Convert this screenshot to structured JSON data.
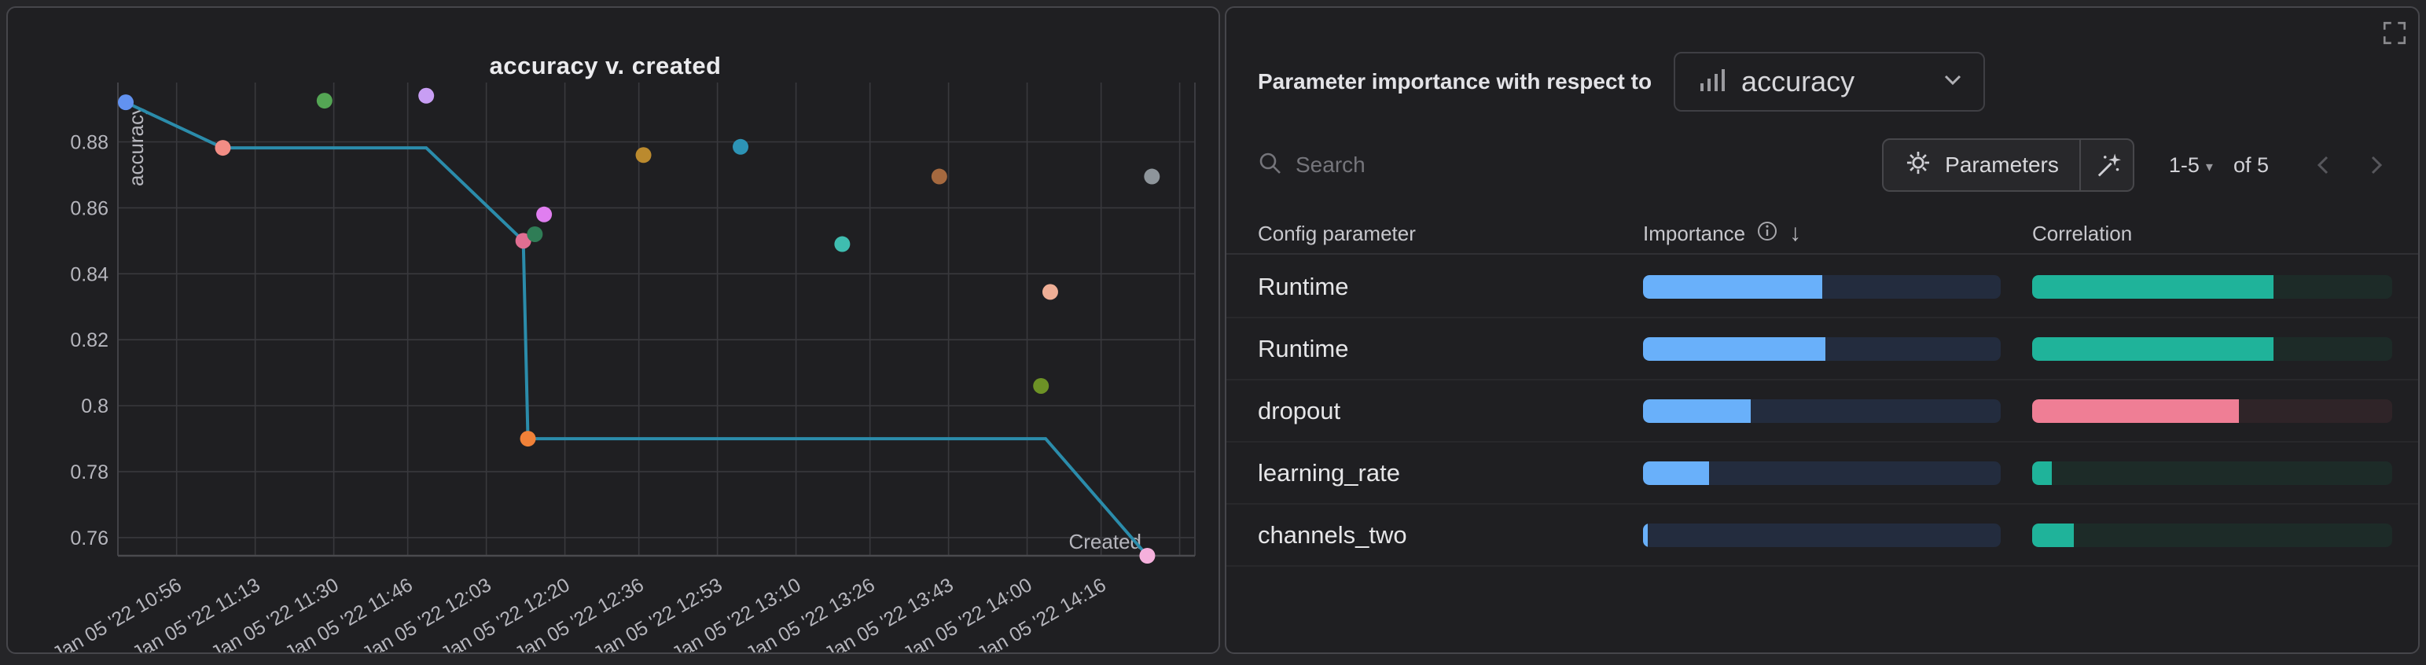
{
  "colors": {
    "page_bg": "#252528",
    "panel_bg": "#1f1f22",
    "panel_border": "#46464b",
    "grid_line": "#39393d",
    "axis_line": "#4a4a4e",
    "tick_text": "#b6b6bd",
    "run_line": "#2b8cab",
    "importance_fill": "#69b0fa",
    "importance_track": "#232c3e",
    "correlation_green": "#1fb39a",
    "correlation_green_track": "#1d2b28",
    "correlation_pink": "#ef7e95",
    "correlation_pink_track": "#2f2428"
  },
  "chart_data": {
    "type": "scatter",
    "title": "accuracy v. created",
    "xlabel": "Created",
    "ylabel": "accuracy",
    "x_domain": [
      43.3,
      276.3
    ],
    "y_domain": [
      0.7545,
      0.898
    ],
    "grid": true,
    "x_ticks": [
      {
        "label": "Jan 05 '22 10:56",
        "min": 56
      },
      {
        "label": "Jan 05 '22 11:13",
        "min": 73
      },
      {
        "label": "Jan 05 '22 11:30",
        "min": 90
      },
      {
        "label": "Jan 05 '22 11:46",
        "min": 106
      },
      {
        "label": "Jan 05 '22 12:03",
        "min": 123
      },
      {
        "label": "Jan 05 '22 12:20",
        "min": 140
      },
      {
        "label": "Jan 05 '22 12:36",
        "min": 156
      },
      {
        "label": "Jan 05 '22 12:53",
        "min": 173
      },
      {
        "label": "Jan 05 '22 13:10",
        "min": 190
      },
      {
        "label": "Jan 05 '22 13:26",
        "min": 206
      },
      {
        "label": "Jan 05 '22 13:43",
        "min": 223
      },
      {
        "label": "Jan 05 '22 14:00",
        "min": 240
      },
      {
        "label": "Jan 05 '22 14:16",
        "min": 256
      }
    ],
    "x_extra_gridlines": [
      273
    ],
    "y_ticks": [
      "0.88",
      "0.86",
      "0.84",
      "0.82",
      "0.8",
      "0.78",
      "0.76"
    ],
    "points": [
      {
        "t": 45,
        "v": 0.892,
        "color": "#6292f0"
      },
      {
        "t": 66,
        "v": 0.8782,
        "color": "#f28d85"
      },
      {
        "t": 88,
        "v": 0.8925,
        "color": "#54a554"
      },
      {
        "t": 110,
        "v": 0.894,
        "color": "#c89ef4"
      },
      {
        "t": 131,
        "v": 0.85,
        "color": "#e06e92"
      },
      {
        "t": 133.5,
        "v": 0.852,
        "color": "#2f7d56"
      },
      {
        "t": 135.5,
        "v": 0.858,
        "color": "#e07ef0"
      },
      {
        "t": 132,
        "v": 0.79,
        "color": "#f08138"
      },
      {
        "t": 157,
        "v": 0.876,
        "color": "#bb8a2e"
      },
      {
        "t": 178,
        "v": 0.8785,
        "color": "#2d93b5"
      },
      {
        "t": 200,
        "v": 0.849,
        "color": "#3fbdb0"
      },
      {
        "t": 221,
        "v": 0.8695,
        "color": "#a5693f"
      },
      {
        "t": 243,
        "v": 0.806,
        "color": "#6d9226"
      },
      {
        "t": 245,
        "v": 0.8345,
        "color": "#eeae96"
      },
      {
        "t": 266,
        "v": 0.754,
        "color": "#f5b0dc"
      },
      {
        "t": 267,
        "v": 0.8695,
        "color": "#8e959b"
      }
    ],
    "line": {
      "color": "#2b8cab",
      "vertices": [
        [
          45,
          0.892
        ],
        [
          66,
          0.8782
        ],
        [
          110,
          0.8782
        ],
        [
          131,
          0.85
        ],
        [
          132,
          0.79
        ],
        [
          244,
          0.79
        ],
        [
          266,
          0.754
        ]
      ]
    }
  },
  "right_panel": {
    "title": "Parameter importance with respect to",
    "metric_select": {
      "icon": "bar-chart",
      "value": "accuracy"
    },
    "search": {
      "placeholder": "Search"
    },
    "parameters_button": "Parameters",
    "pagination": {
      "range": "1-5",
      "of": "of 5"
    },
    "table": {
      "headers": {
        "parameter": "Config parameter",
        "importance": "Importance",
        "correlation": "Correlation"
      },
      "rows": [
        {
          "parameter": "Runtime",
          "importance": 0.5,
          "correlation": 0.67,
          "correlation_color": "#1fb39a",
          "correlation_track": "#1d2b28"
        },
        {
          "parameter": "Runtime",
          "importance": 0.51,
          "correlation": 0.67,
          "correlation_color": "#1fb39a",
          "correlation_track": "#1d2b28"
        },
        {
          "parameter": "dropout",
          "importance": 0.3,
          "correlation": 0.575,
          "correlation_color": "#ef7e95",
          "correlation_track": "#2f2428"
        },
        {
          "parameter": "learning_rate",
          "importance": 0.185,
          "correlation": 0.055,
          "correlation_color": "#1fb39a",
          "correlation_track": "#1d2b28"
        },
        {
          "parameter": "channels_two",
          "importance": 0.013,
          "correlation": 0.115,
          "correlation_color": "#1fb39a",
          "correlation_track": "#1d2b28"
        }
      ]
    }
  }
}
